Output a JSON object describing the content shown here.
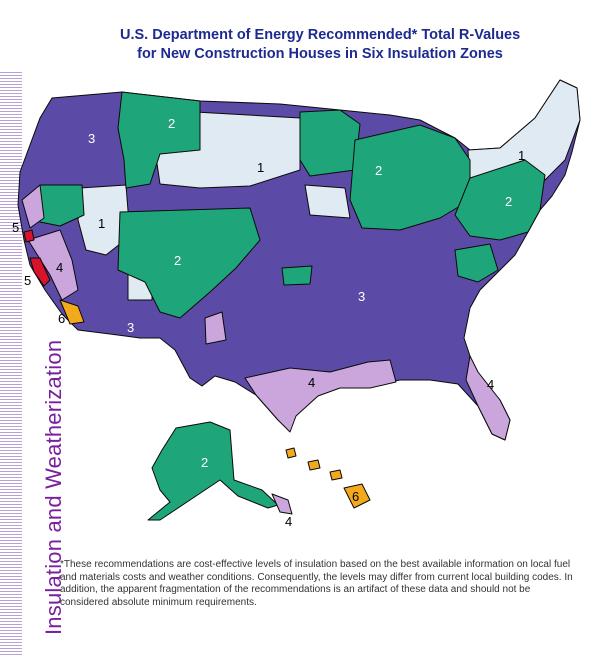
{
  "header": {
    "title_line1": "U.S. Department of Energy Recommended* Total R-Values",
    "title_line2": "for New Construction Houses in Six Insulation Zones"
  },
  "sidebar": {
    "vertical_title": "Insulation and Weatherization"
  },
  "footnote": "*These recommendations are cost-effective levels of insulation based on the best available information on local fuel and materials costs and weather conditions. Consequently, the levels may differ from current local building codes. In addition, the apparent fragmentation of the recommendations is an artifact of these data and should not be considered absolute minimum requirements.",
  "zone_colors": {
    "zone_1": "#dfeaf2",
    "zone_2": "#1ea67a",
    "zone_3": "#5c4ba6",
    "zone_4": "#caa6dd",
    "zone_5": "#d8132c",
    "zone_6": "#f3a91c",
    "border": "#0a0a0a"
  },
  "map_labels": [
    {
      "zone": "3"
    },
    {
      "zone": "2"
    },
    {
      "zone": "1"
    },
    {
      "zone": "1"
    },
    {
      "zone": "2"
    },
    {
      "zone": "1"
    },
    {
      "zone": "2"
    },
    {
      "zone": "2"
    },
    {
      "zone": "3"
    },
    {
      "zone": "5"
    },
    {
      "zone": "4"
    },
    {
      "zone": "5"
    },
    {
      "zone": "6"
    },
    {
      "zone": "3"
    },
    {
      "zone": "4"
    },
    {
      "zone": "4"
    },
    {
      "zone": "2"
    },
    {
      "zone": "6"
    },
    {
      "zone": "4"
    }
  ]
}
